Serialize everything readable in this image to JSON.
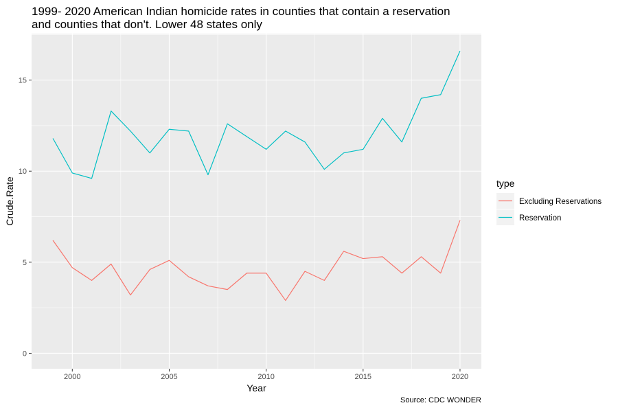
{
  "chart_data": {
    "type": "line",
    "title": "1999- 2020 American Indian homicide rates in counties that contain a reservation and counties that don't. Lower 48 states only",
    "title_lines": [
      "1999- 2020 American Indian homicide rates in counties that contain a reservation",
      "and counties that don't. Lower 48 states only"
    ],
    "xlabel": "Year",
    "ylabel": "Crude.Rate",
    "caption": "Source: CDC WONDER",
    "legend_title": "type",
    "legend_position": "right",
    "grid": true,
    "xlim": [
      1997.9,
      2021.1
    ],
    "ylim": [
      -0.85,
      17.55
    ],
    "xticks": [
      2000,
      2005,
      2010,
      2015,
      2020
    ],
    "yticks": [
      0,
      5,
      10,
      15
    ],
    "x": [
      1999,
      2000,
      2001,
      2002,
      2003,
      2004,
      2005,
      2006,
      2007,
      2008,
      2009,
      2010,
      2011,
      2012,
      2013,
      2014,
      2015,
      2016,
      2017,
      2018,
      2019,
      2020
    ],
    "series": [
      {
        "name": "Excluding Reservations",
        "color": "#F8766D",
        "values": [
          6.2,
          4.7,
          4.0,
          4.9,
          3.2,
          4.6,
          5.1,
          4.2,
          3.7,
          3.5,
          4.4,
          4.4,
          2.9,
          4.5,
          4.0,
          5.6,
          5.2,
          5.3,
          4.4,
          5.3,
          4.4,
          7.3
        ]
      },
      {
        "name": "Reservation",
        "color": "#00BFC4",
        "values": [
          11.8,
          9.9,
          9.6,
          13.3,
          12.2,
          11.0,
          12.3,
          12.2,
          9.8,
          12.6,
          11.9,
          11.2,
          12.2,
          11.6,
          10.1,
          11.0,
          11.2,
          12.9,
          11.6,
          14.0,
          14.2,
          16.6
        ]
      }
    ]
  }
}
